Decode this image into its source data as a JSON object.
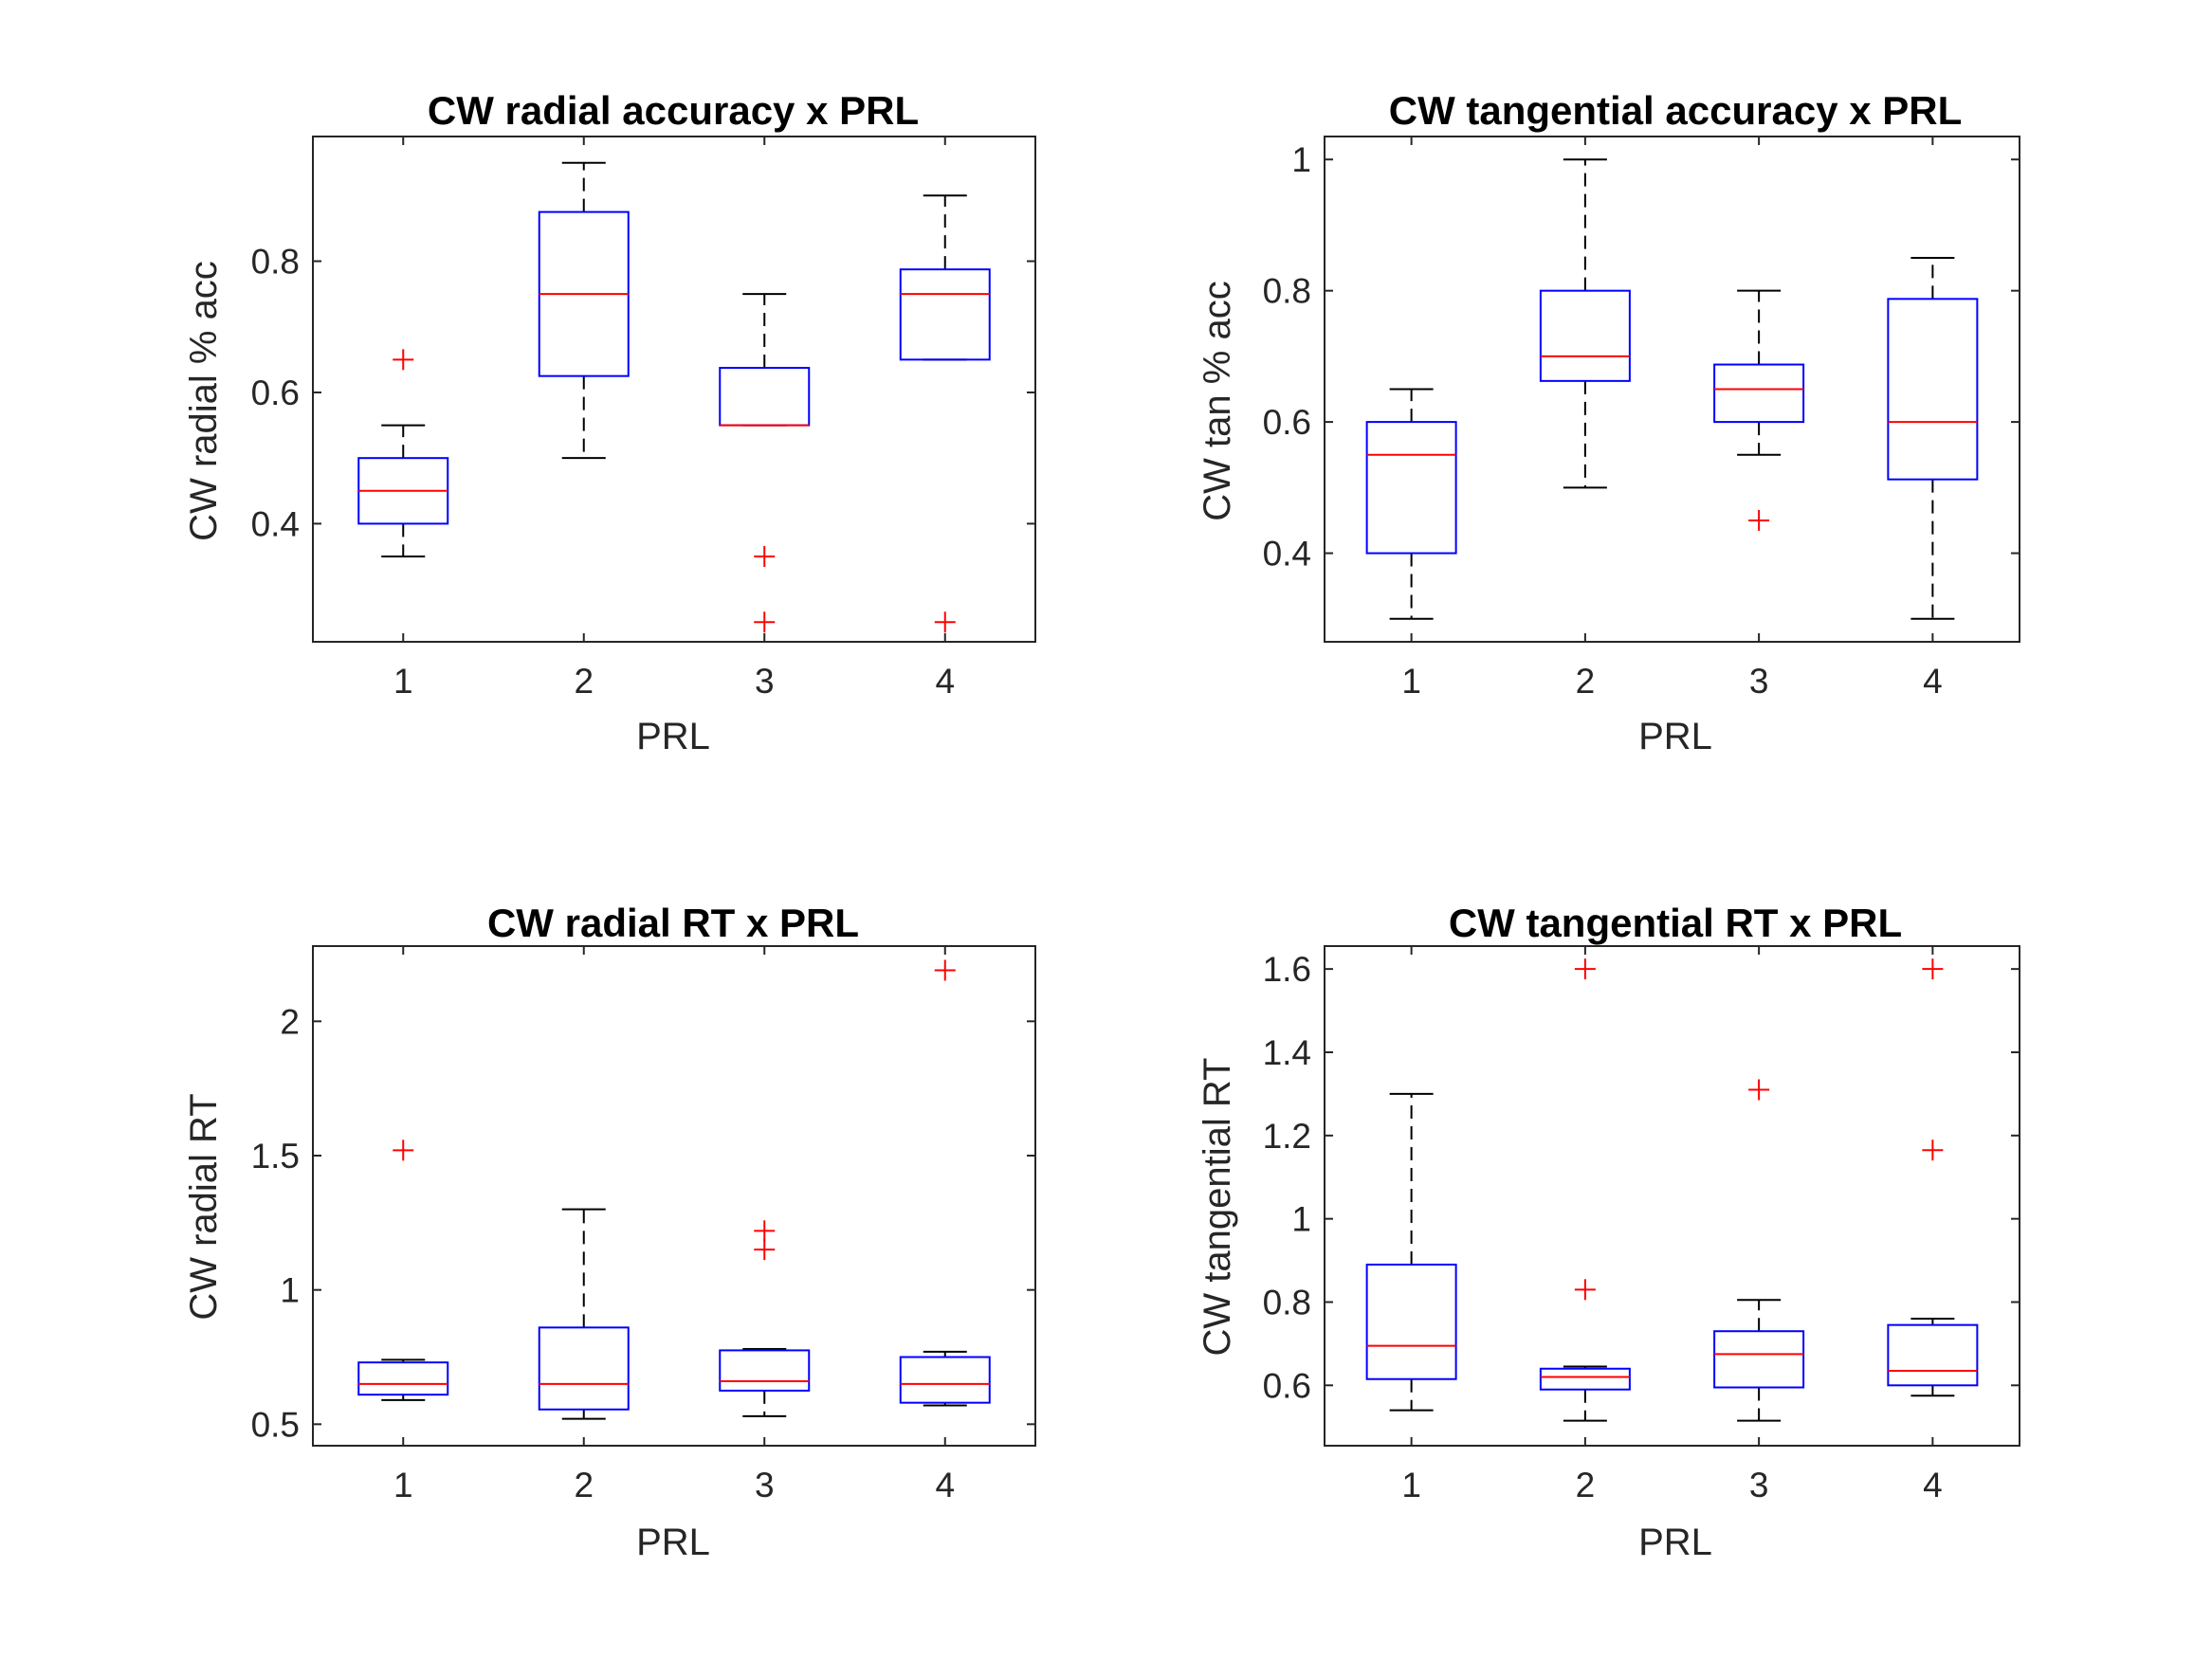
{
  "figure": {
    "background": "#ffffff",
    "box_color": "#0000ff",
    "median_color": "#ff0000",
    "whisker_color": "#000000",
    "outlier_color": "#ff0000",
    "axis_color": "#262626"
  },
  "chart_data": [
    {
      "type": "box",
      "title": "CW radial accuracy x PRL",
      "xlabel": "PRL",
      "ylabel": "CW radial % acc",
      "categories": [
        "1",
        "2",
        "3",
        "4"
      ],
      "ylim": [
        0.22,
        0.99
      ],
      "yticks": [
        0.4,
        0.6,
        0.8
      ],
      "ytick_labels": [
        "0.4",
        "0.6",
        "0.8"
      ],
      "boxes": [
        {
          "category": "1",
          "whisker_low": 0.35,
          "q1": 0.4,
          "median": 0.45,
          "q3": 0.5,
          "whisker_high": 0.55,
          "outliers": [
            0.65
          ]
        },
        {
          "category": "2",
          "whisker_low": 0.5,
          "q1": 0.625,
          "median": 0.75,
          "q3": 0.875,
          "whisker_high": 0.95,
          "outliers": []
        },
        {
          "category": "3",
          "whisker_low": 0.55,
          "q1": 0.55,
          "median": 0.55,
          "q3": 0.6375,
          "whisker_high": 0.75,
          "outliers": [
            0.35,
            0.25
          ]
        },
        {
          "category": "4",
          "whisker_low": 0.65,
          "q1": 0.65,
          "median": 0.75,
          "q3": 0.7875,
          "whisker_high": 0.9,
          "outliers": [
            0.25
          ]
        }
      ]
    },
    {
      "type": "box",
      "title": "CW tangential accuracy x PRL",
      "xlabel": "PRL",
      "ylabel": "CW tan % acc",
      "categories": [
        "1",
        "2",
        "3",
        "4"
      ],
      "ylim": [
        0.265,
        1.035
      ],
      "yticks": [
        0.4,
        0.6,
        0.8,
        1.0
      ],
      "ytick_labels": [
        "0.4",
        "0.6",
        "0.8",
        "1"
      ],
      "boxes": [
        {
          "category": "1",
          "whisker_low": 0.3,
          "q1": 0.4,
          "median": 0.55,
          "q3": 0.6,
          "whisker_high": 0.65,
          "outliers": []
        },
        {
          "category": "2",
          "whisker_low": 0.5,
          "q1": 0.6625,
          "median": 0.7,
          "q3": 0.8,
          "whisker_high": 1.0,
          "outliers": []
        },
        {
          "category": "3",
          "whisker_low": 0.55,
          "q1": 0.6,
          "median": 0.65,
          "q3": 0.6875,
          "whisker_high": 0.8,
          "outliers": [
            0.45
          ]
        },
        {
          "category": "4",
          "whisker_low": 0.3,
          "q1": 0.5125,
          "median": 0.6,
          "q3": 0.7875,
          "whisker_high": 0.85,
          "outliers": []
        }
      ]
    },
    {
      "type": "box",
      "title": "CW radial RT x PRL",
      "xlabel": "PRL",
      "ylabel": "CW radial RT",
      "categories": [
        "1",
        "2",
        "3",
        "4"
      ],
      "ylim": [
        0.42,
        2.28
      ],
      "yticks": [
        0.5,
        1.0,
        1.5,
        2.0
      ],
      "ytick_labels": [
        "0.5",
        "1",
        "1.5",
        "2"
      ],
      "boxes": [
        {
          "category": "1",
          "whisker_low": 0.59,
          "q1": 0.61,
          "median": 0.65,
          "q3": 0.73,
          "whisker_high": 0.74,
          "outliers": [
            1.52
          ]
        },
        {
          "category": "2",
          "whisker_low": 0.52,
          "q1": 0.555,
          "median": 0.65,
          "q3": 0.86,
          "whisker_high": 1.3,
          "outliers": []
        },
        {
          "category": "3",
          "whisker_low": 0.53,
          "q1": 0.625,
          "median": 0.66,
          "q3": 0.775,
          "whisker_high": 0.78,
          "outliers": [
            1.22,
            1.15
          ]
        },
        {
          "category": "4",
          "whisker_low": 0.57,
          "q1": 0.58,
          "median": 0.65,
          "q3": 0.75,
          "whisker_high": 0.77,
          "outliers": [
            2.19
          ]
        }
      ]
    },
    {
      "type": "box",
      "title": "CW tangential RT x PRL",
      "xlabel": "PRL",
      "ylabel": "CW tangential RT",
      "categories": [
        "1",
        "2",
        "3",
        "4"
      ],
      "ylim": [
        0.455,
        1.655
      ],
      "yticks": [
        0.6,
        0.8,
        1.0,
        1.2,
        1.4,
        1.6
      ],
      "ytick_labels": [
        "0.6",
        "0.8",
        "1",
        "1.2",
        "1.4",
        "1.6"
      ],
      "boxes": [
        {
          "category": "1",
          "whisker_low": 0.54,
          "q1": 0.615,
          "median": 0.695,
          "q3": 0.89,
          "whisker_high": 1.3,
          "outliers": []
        },
        {
          "category": "2",
          "whisker_low": 0.515,
          "q1": 0.59,
          "median": 0.62,
          "q3": 0.64,
          "whisker_high": 0.645,
          "outliers": [
            1.6,
            0.83
          ]
        },
        {
          "category": "3",
          "whisker_low": 0.515,
          "q1": 0.595,
          "median": 0.675,
          "q3": 0.73,
          "whisker_high": 0.805,
          "outliers": [
            1.31
          ]
        },
        {
          "category": "4",
          "whisker_low": 0.575,
          "q1": 0.6,
          "median": 0.635,
          "q3": 0.745,
          "whisker_high": 0.76,
          "outliers": [
            1.6,
            1.165
          ]
        }
      ]
    }
  ]
}
